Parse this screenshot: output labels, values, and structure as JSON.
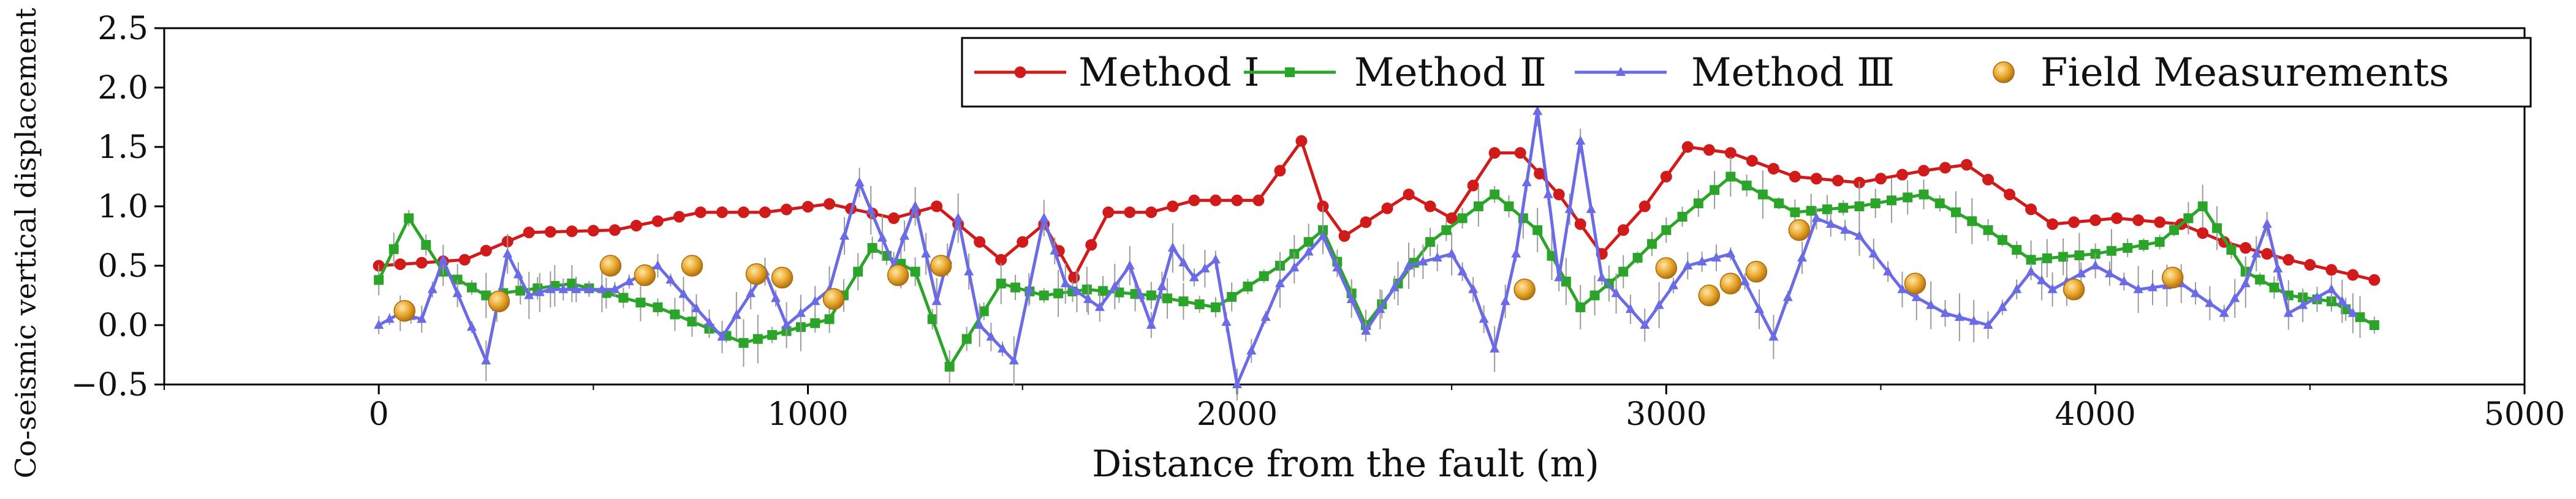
{
  "chart_data": {
    "type": "line",
    "xlabel": "Distance from the fault (m)",
    "ylabel": "Co-seismic vertical displacement (m)",
    "xlim": [
      -500,
      5000
    ],
    "ylim": [
      -0.5,
      2.5
    ],
    "xticks": [
      0,
      1000,
      2000,
      3000,
      4000,
      5000
    ],
    "xtick_labels": [
      "0",
      "1000",
      "2000",
      "3000",
      "4000",
      "5000"
    ],
    "yticks": [
      -0.5,
      0.0,
      0.5,
      1.0,
      1.5,
      2.0,
      2.5
    ],
    "ytick_labels": [
      "−0.5",
      "0.0",
      "0.5",
      "1.0",
      "1.5",
      "2.0",
      "2.5"
    ],
    "grid": false,
    "legend_position": "top-right",
    "series": [
      {
        "name": "Method Ⅰ",
        "color": "#d11a1a",
        "marker": "circle",
        "points": [
          [
            0,
            0.5
          ],
          [
            200,
            0.55
          ],
          [
            350,
            0.78
          ],
          [
            550,
            0.8
          ],
          [
            750,
            0.95
          ],
          [
            900,
            0.95
          ],
          [
            1050,
            1.02
          ],
          [
            1200,
            0.9
          ],
          [
            1300,
            1.0
          ],
          [
            1450,
            0.55
          ],
          [
            1550,
            0.85
          ],
          [
            1620,
            0.4
          ],
          [
            1700,
            0.95
          ],
          [
            1800,
            0.95
          ],
          [
            1900,
            1.05
          ],
          [
            2050,
            1.05
          ],
          [
            2150,
            1.55
          ],
          [
            2200,
            1.0
          ],
          [
            2250,
            0.75
          ],
          [
            2400,
            1.1
          ],
          [
            2500,
            0.9
          ],
          [
            2600,
            1.45
          ],
          [
            2660,
            1.45
          ],
          [
            2750,
            1.1
          ],
          [
            2850,
            0.6
          ],
          [
            2950,
            1.0
          ],
          [
            3050,
            1.5
          ],
          [
            3150,
            1.45
          ],
          [
            3300,
            1.25
          ],
          [
            3450,
            1.2
          ],
          [
            3600,
            1.3
          ],
          [
            3700,
            1.35
          ],
          [
            3800,
            1.1
          ],
          [
            3900,
            0.85
          ],
          [
            4050,
            0.9
          ],
          [
            4200,
            0.85
          ],
          [
            4300,
            0.7
          ],
          [
            4450,
            0.55
          ],
          [
            4650,
            0.38
          ]
        ]
      },
      {
        "name": "Method Ⅱ",
        "color": "#2aa52a",
        "marker": "square",
        "points": [
          [
            0,
            0.38
          ],
          [
            70,
            0.9
          ],
          [
            150,
            0.45
          ],
          [
            250,
            0.25
          ],
          [
            450,
            0.35
          ],
          [
            650,
            0.15
          ],
          [
            850,
            -0.15
          ],
          [
            950,
            -0.05
          ],
          [
            1050,
            0.05
          ],
          [
            1150,
            0.65
          ],
          [
            1250,
            0.45
          ],
          [
            1330,
            -0.35
          ],
          [
            1450,
            0.35
          ],
          [
            1550,
            0.25
          ],
          [
            1650,
            0.3
          ],
          [
            1800,
            0.25
          ],
          [
            1950,
            0.15
          ],
          [
            2100,
            0.5
          ],
          [
            2200,
            0.8
          ],
          [
            2300,
            0.0
          ],
          [
            2450,
            0.7
          ],
          [
            2600,
            1.1
          ],
          [
            2700,
            0.8
          ],
          [
            2800,
            0.15
          ],
          [
            2900,
            0.45
          ],
          [
            3000,
            0.8
          ],
          [
            3150,
            1.25
          ],
          [
            3300,
            0.95
          ],
          [
            3450,
            1.0
          ],
          [
            3600,
            1.1
          ],
          [
            3750,
            0.8
          ],
          [
            3850,
            0.55
          ],
          [
            4000,
            0.6
          ],
          [
            4150,
            0.7
          ],
          [
            4250,
            1.0
          ],
          [
            4350,
            0.45
          ],
          [
            4450,
            0.25
          ],
          [
            4550,
            0.2
          ],
          [
            4650,
            0.0
          ]
        ]
      },
      {
        "name": "Method Ⅲ",
        "color": "#6b6be6",
        "marker": "triangle",
        "points": [
          [
            0,
            0.0
          ],
          [
            50,
            0.1
          ],
          [
            100,
            0.05
          ],
          [
            150,
            0.55
          ],
          [
            250,
            -0.3
          ],
          [
            300,
            0.6
          ],
          [
            350,
            0.25
          ],
          [
            400,
            0.3
          ],
          [
            550,
            0.3
          ],
          [
            650,
            0.5
          ],
          [
            800,
            -0.1
          ],
          [
            900,
            0.45
          ],
          [
            950,
            0.0
          ],
          [
            1050,
            0.3
          ],
          [
            1120,
            1.2
          ],
          [
            1200,
            0.5
          ],
          [
            1250,
            1.0
          ],
          [
            1300,
            0.2
          ],
          [
            1350,
            0.9
          ],
          [
            1400,
            0.0
          ],
          [
            1480,
            -0.3
          ],
          [
            1550,
            0.9
          ],
          [
            1600,
            0.35
          ],
          [
            1680,
            0.15
          ],
          [
            1750,
            0.5
          ],
          [
            1800,
            0.0
          ],
          [
            1850,
            0.65
          ],
          [
            1900,
            0.4
          ],
          [
            1950,
            0.55
          ],
          [
            2000,
            -0.5
          ],
          [
            2100,
            0.35
          ],
          [
            2200,
            0.75
          ],
          [
            2300,
            -0.05
          ],
          [
            2400,
            0.5
          ],
          [
            2500,
            0.6
          ],
          [
            2550,
            0.3
          ],
          [
            2600,
            -0.2
          ],
          [
            2650,
            0.6
          ],
          [
            2700,
            1.8
          ],
          [
            2750,
            0.4
          ],
          [
            2800,
            1.55
          ],
          [
            2850,
            0.4
          ],
          [
            2950,
            0.0
          ],
          [
            3050,
            0.5
          ],
          [
            3150,
            0.6
          ],
          [
            3250,
            -0.1
          ],
          [
            3350,
            0.9
          ],
          [
            3450,
            0.75
          ],
          [
            3550,
            0.3
          ],
          [
            3650,
            0.1
          ],
          [
            3750,
            0.0
          ],
          [
            3850,
            0.45
          ],
          [
            3900,
            0.3
          ],
          [
            4000,
            0.5
          ],
          [
            4100,
            0.3
          ],
          [
            4200,
            0.35
          ],
          [
            4300,
            0.1
          ],
          [
            4350,
            0.35
          ],
          [
            4400,
            0.85
          ],
          [
            4450,
            0.1
          ],
          [
            4550,
            0.3
          ],
          [
            4600,
            0.1
          ]
        ]
      },
      {
        "name": "Field Measurements",
        "color": "#e8a52a",
        "marker": "sphere",
        "points": [
          [
            60,
            0.12
          ],
          [
            280,
            0.2
          ],
          [
            540,
            0.5
          ],
          [
            620,
            0.42
          ],
          [
            730,
            0.5
          ],
          [
            880,
            0.43
          ],
          [
            940,
            0.4
          ],
          [
            1060,
            0.22
          ],
          [
            1210,
            0.42
          ],
          [
            1310,
            0.5
          ],
          [
            2670,
            0.3
          ],
          [
            3000,
            0.48
          ],
          [
            3100,
            0.25
          ],
          [
            3150,
            0.35
          ],
          [
            3210,
            0.45
          ],
          [
            3310,
            0.8
          ],
          [
            3580,
            0.35
          ],
          [
            3950,
            0.3
          ],
          [
            4180,
            0.4
          ]
        ]
      }
    ]
  }
}
